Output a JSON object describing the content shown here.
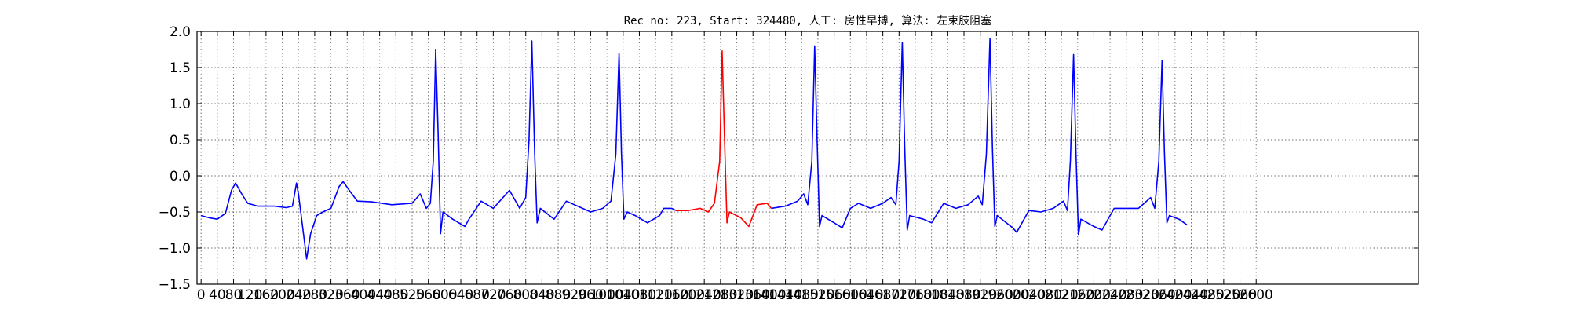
{
  "chart_data": {
    "type": "line",
    "title": "Rec_no: 223, Start: 324480, 人工: 房性早搏, 算法: 左束肢阻塞",
    "xlabel": "",
    "ylabel": "",
    "xlim": [
      -10,
      3000
    ],
    "ylim": [
      -1.5,
      2.0
    ],
    "grid": true,
    "yticks": [
      -1.5,
      -1.0,
      -0.5,
      0.0,
      0.5,
      1.0,
      1.5,
      2.0
    ],
    "ytick_labels": [
      "−1.5",
      "−1.0",
      "−0.5",
      "0.0",
      "0.5",
      "1.0",
      "1.5",
      "2.0"
    ],
    "xticks": [
      0,
      40,
      80,
      120,
      160,
      200,
      240,
      280,
      320,
      360,
      400,
      440,
      480,
      520,
      560,
      600,
      640,
      680,
      720,
      760,
      800,
      840,
      880,
      920,
      960,
      1000,
      1040,
      1080,
      1120,
      1160,
      1200,
      1240,
      1280,
      1320,
      1360,
      1400,
      1440,
      1480,
      1520,
      1560,
      1600,
      1640,
      1680,
      1720,
      1760,
      1800,
      1840,
      1880,
      1920,
      1960,
      2000,
      2040,
      2080,
      2120,
      2160,
      2200,
      2240,
      2280,
      2320,
      2360,
      2400,
      2440,
      2480,
      2520,
      2560,
      2600
    ],
    "xtick_labels": [
      "0",
      "40",
      "80",
      "120",
      "160",
      "200",
      "240",
      "280",
      "320",
      "360",
      "400",
      "440",
      "480",
      "520",
      "560",
      "600",
      "640",
      "680",
      "720",
      "760",
      "800",
      "840",
      "880",
      "920",
      "960",
      "1000",
      "1040",
      "1080",
      "1120",
      "1160",
      "1200",
      "1240",
      "1280",
      "1320",
      "1360",
      "1400",
      "1440",
      "1480",
      "1520",
      "1560",
      "1600",
      "1640",
      "1680",
      "1720",
      "1760",
      "1800",
      "1840",
      "1880",
      "1920",
      "1960",
      "2000",
      "2040",
      "2080",
      "2120",
      "2160",
      "2200",
      "2240",
      "2280",
      "2320",
      "2360",
      "2400",
      "2440",
      "2480",
      "2520",
      "2560",
      "2600"
    ],
    "series": [
      {
        "color": "#0000ff",
        "points": [
          [
            0,
            -0.55
          ],
          [
            20,
            -0.58
          ],
          [
            40,
            -0.6
          ],
          [
            60,
            -0.52
          ],
          [
            75,
            -0.2
          ],
          [
            85,
            -0.1
          ],
          [
            100,
            -0.25
          ],
          [
            115,
            -0.38
          ],
          [
            140,
            -0.42
          ],
          [
            180,
            -0.42
          ],
          [
            210,
            -0.44
          ],
          [
            225,
            -0.42
          ],
          [
            235,
            -0.1
          ],
          [
            240,
            -0.25
          ],
          [
            250,
            -0.7
          ],
          [
            260,
            -1.15
          ],
          [
            270,
            -0.8
          ],
          [
            285,
            -0.55
          ],
          [
            300,
            -0.5
          ],
          [
            320,
            -0.45
          ],
          [
            340,
            -0.15
          ],
          [
            350,
            -0.08
          ],
          [
            365,
            -0.2
          ],
          [
            385,
            -0.35
          ],
          [
            420,
            -0.36
          ],
          [
            470,
            -0.4
          ],
          [
            520,
            -0.38
          ],
          [
            540,
            -0.25
          ],
          [
            555,
            -0.45
          ],
          [
            565,
            -0.38
          ],
          [
            572,
            0.2
          ],
          [
            578,
            1.75
          ],
          [
            584,
            0.6
          ],
          [
            590,
            -0.8
          ],
          [
            596,
            -0.5
          ],
          [
            620,
            -0.6
          ],
          [
            650,
            -0.7
          ],
          [
            660,
            -0.6
          ],
          [
            690,
            -0.35
          ],
          [
            720,
            -0.45
          ],
          [
            760,
            -0.2
          ],
          [
            785,
            -0.45
          ],
          [
            800,
            -0.3
          ],
          [
            808,
            0.5
          ],
          [
            815,
            1.87
          ],
          [
            822,
            0.3
          ],
          [
            828,
            -0.65
          ],
          [
            836,
            -0.45
          ],
          [
            870,
            -0.6
          ],
          [
            900,
            -0.35
          ],
          [
            960,
            -0.5
          ],
          [
            990,
            -0.45
          ],
          [
            1010,
            -0.35
          ],
          [
            1022,
            0.3
          ],
          [
            1030,
            1.7
          ],
          [
            1036,
            0.3
          ],
          [
            1042,
            -0.6
          ],
          [
            1050,
            -0.5
          ],
          [
            1070,
            -0.55
          ],
          [
            1100,
            -0.65
          ],
          [
            1130,
            -0.55
          ],
          [
            1140,
            -0.45
          ],
          [
            1160,
            -0.45
          ],
          [
            1170,
            -0.48
          ]
        ]
      },
      {
        "color": "#ff0000",
        "points": [
          [
            1170,
            -0.48
          ],
          [
            1200,
            -0.48
          ],
          [
            1230,
            -0.45
          ],
          [
            1250,
            -0.5
          ],
          [
            1265,
            -0.38
          ],
          [
            1278,
            0.2
          ],
          [
            1284,
            1.73
          ],
          [
            1290,
            0.5
          ],
          [
            1296,
            -0.65
          ],
          [
            1302,
            -0.5
          ],
          [
            1330,
            -0.58
          ],
          [
            1350,
            -0.7
          ],
          [
            1370,
            -0.4
          ],
          [
            1395,
            -0.38
          ],
          [
            1405,
            -0.45
          ]
        ]
      },
      {
        "color": "#0000ff",
        "points": [
          [
            1405,
            -0.45
          ],
          [
            1440,
            -0.42
          ],
          [
            1470,
            -0.35
          ],
          [
            1485,
            -0.25
          ],
          [
            1495,
            -0.4
          ],
          [
            1505,
            0.2
          ],
          [
            1512,
            1.8
          ],
          [
            1518,
            0.5
          ],
          [
            1524,
            -0.7
          ],
          [
            1530,
            -0.55
          ],
          [
            1560,
            -0.65
          ],
          [
            1580,
            -0.72
          ],
          [
            1600,
            -0.45
          ],
          [
            1620,
            -0.38
          ],
          [
            1650,
            -0.45
          ],
          [
            1680,
            -0.38
          ],
          [
            1700,
            -0.3
          ],
          [
            1712,
            -0.4
          ],
          [
            1720,
            0.2
          ],
          [
            1728,
            1.85
          ],
          [
            1734,
            0.4
          ],
          [
            1740,
            -0.75
          ],
          [
            1746,
            -0.55
          ],
          [
            1780,
            -0.6
          ],
          [
            1800,
            -0.65
          ],
          [
            1830,
            -0.38
          ],
          [
            1860,
            -0.45
          ],
          [
            1890,
            -0.4
          ],
          [
            1915,
            -0.28
          ],
          [
            1925,
            -0.4
          ],
          [
            1935,
            0.3
          ],
          [
            1944,
            1.9
          ],
          [
            1950,
            0.4
          ],
          [
            1956,
            -0.7
          ],
          [
            1962,
            -0.55
          ],
          [
            2000,
            -0.72
          ],
          [
            2010,
            -0.78
          ],
          [
            2040,
            -0.48
          ],
          [
            2070,
            -0.5
          ],
          [
            2100,
            -0.45
          ],
          [
            2125,
            -0.35
          ],
          [
            2135,
            -0.48
          ],
          [
            2142,
            0.2
          ],
          [
            2150,
            1.68
          ],
          [
            2156,
            0.3
          ],
          [
            2162,
            -0.82
          ],
          [
            2168,
            -0.6
          ],
          [
            2200,
            -0.7
          ],
          [
            2220,
            -0.75
          ],
          [
            2250,
            -0.45
          ],
          [
            2280,
            -0.45
          ],
          [
            2310,
            -0.45
          ],
          [
            2340,
            -0.3
          ],
          [
            2350,
            -0.45
          ],
          [
            2360,
            0.2
          ],
          [
            2368,
            1.6
          ],
          [
            2374,
            0.3
          ],
          [
            2380,
            -0.65
          ],
          [
            2386,
            -0.55
          ],
          [
            2410,
            -0.6
          ],
          [
            2430,
            -0.68
          ]
        ]
      }
    ]
  }
}
